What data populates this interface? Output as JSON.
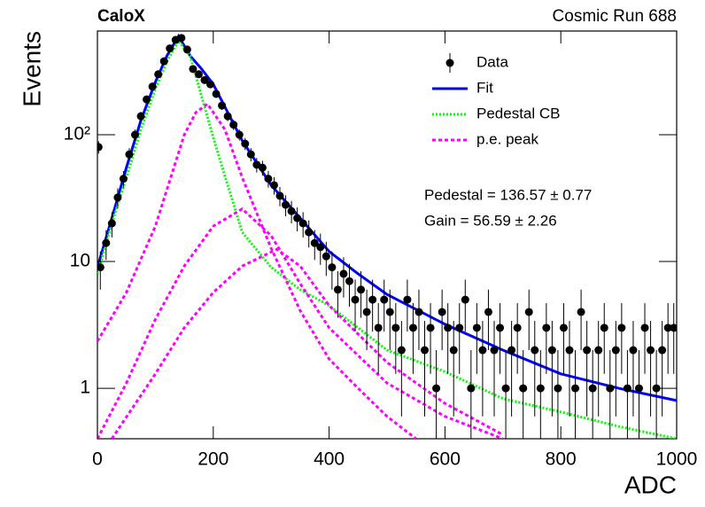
{
  "chart_data": {
    "type": "scatter",
    "title": "CaloX",
    "subtitle": "Cosmic Run 688",
    "x_label": "ADC",
    "y_label": "Events",
    "log_y": true,
    "xlim": [
      0,
      1000
    ],
    "xticks": [
      0,
      200,
      400,
      600,
      800,
      1000
    ],
    "ylim": [
      0.4,
      658
    ],
    "yticks": [
      1,
      10,
      {
        "value": 100,
        "label": "10²"
      }
    ],
    "annotations": [
      "Pedestal = 136.57 ± 0.77",
      "Gain = 56.59 ± 2.26"
    ],
    "legend": "upper right",
    "data": {
      "name": "Data",
      "color": "#000000",
      "x": [
        2,
        5,
        15,
        25,
        35,
        45,
        55,
        65,
        75,
        85,
        95,
        105,
        115,
        125,
        135,
        145,
        155,
        165,
        175,
        185,
        195,
        205,
        215,
        225,
        235,
        245,
        255,
        265,
        275,
        285,
        295,
        305,
        315,
        325,
        335,
        345,
        355,
        365,
        375,
        385,
        395,
        405,
        415,
        425,
        435,
        445,
        455,
        465,
        475,
        485,
        495,
        505,
        515,
        525,
        535,
        545,
        555,
        565,
        575,
        585,
        595,
        605,
        615,
        625,
        635,
        645,
        655,
        665,
        675,
        685,
        695,
        705,
        715,
        725,
        735,
        745,
        755,
        765,
        775,
        785,
        795,
        805,
        815,
        825,
        835,
        845,
        855,
        865,
        875,
        885,
        895,
        905,
        915,
        925,
        935,
        945,
        955,
        965,
        975,
        985,
        995
      ],
      "values": [
        80,
        9,
        14,
        20,
        32,
        45,
        70,
        100,
        140,
        190,
        240,
        300,
        380,
        480,
        560,
        580,
        470,
        330,
        300,
        270,
        250,
        210,
        170,
        140,
        120,
        100,
        85,
        70,
        58,
        55,
        45,
        40,
        33,
        28,
        25,
        22,
        20,
        17,
        14,
        13,
        11,
        9,
        6,
        8,
        7,
        5,
        6,
        4,
        5,
        3,
        5,
        4,
        3,
        2,
        5,
        3,
        4,
        2,
        3,
        1,
        4,
        3,
        2,
        3,
        5,
        1,
        3,
        2,
        4,
        2,
        3,
        1,
        2,
        3,
        1,
        4,
        2,
        1,
        3,
        2,
        1,
        3,
        2,
        1,
        4,
        2,
        1,
        2,
        3,
        1,
        2,
        3,
        1,
        2,
        1,
        3,
        2,
        1,
        2,
        3,
        3
      ],
      "errors": [
        9,
        3,
        3.7,
        4.5,
        5.7,
        6.7,
        8.4,
        10,
        11.8,
        13.8,
        15.5,
        17.3,
        19.5,
        21.9,
        23.7,
        24.1,
        21.7,
        18.2,
        17.3,
        16.4,
        15.8,
        14.5,
        13,
        11.8,
        11,
        10,
        9.2,
        8.4,
        7.6,
        7.4,
        6.7,
        6.3,
        5.7,
        5.3,
        5,
        4.7,
        4.5,
        4.1,
        3.7,
        3.6,
        3.3,
        3,
        2.4,
        2.8,
        2.6,
        2.2,
        2.4,
        2,
        2.2,
        1.7,
        2.2,
        2,
        1.7,
        1.4,
        2.2,
        1.7,
        2,
        1.4,
        1.7,
        1,
        2,
        1.7,
        1.4,
        1.7,
        2.2,
        1,
        1.7,
        1.4,
        2,
        1.4,
        1.7,
        1,
        1.4,
        1.7,
        1,
        2,
        1.4,
        1,
        1.7,
        1.4,
        1,
        1.7,
        1.4,
        1,
        2,
        1.4,
        1,
        1.4,
        1.7,
        1,
        1.4,
        1.7,
        1,
        1.4,
        1,
        1.7,
        1.4,
        1,
        1.4,
        1.7,
        1.7
      ]
    },
    "series": [
      {
        "name": "Fit",
        "color": "#0000ff",
        "style": "solid",
        "x": [
          0,
          25,
          50,
          75,
          100,
          120,
          140,
          160,
          180,
          200,
          225,
          250,
          300,
          350,
          400,
          450,
          500,
          600,
          700,
          800,
          900,
          1000
        ],
        "values": [
          9,
          22,
          55,
          130,
          260,
          420,
          600,
          420,
          330,
          250,
          150,
          90,
          40,
          22,
          12,
          8,
          5.5,
          3.2,
          2,
          1.3,
          1,
          0.8
        ]
      },
      {
        "name": "Pedestal CB",
        "color": "#00ff00",
        "style": "dotted",
        "x": [
          0,
          25,
          50,
          75,
          100,
          120,
          140,
          160,
          180,
          200,
          225,
          250,
          300,
          350,
          400,
          500,
          600,
          700,
          800,
          900,
          1000
        ],
        "values": [
          8,
          20,
          46,
          110,
          230,
          380,
          550,
          420,
          200,
          95,
          40,
          17,
          9,
          6,
          4.5,
          2,
          1.35,
          0.83,
          0.65,
          0.5,
          0.4
        ]
      },
      {
        "name": "p.e. peak",
        "color": "#ff00ff",
        "style": "dashed",
        "curves": [
          {
            "x": [
              0,
              50,
              100,
              150,
              170,
              190,
              220,
              250,
              300,
              350,
              400,
              450,
              500,
              550
            ],
            "values": [
              2.35,
              5.7,
              19,
              100,
              150,
              175,
              110,
              46,
              12.7,
              4.1,
              1.7,
              1,
              0.6,
              0.4
            ]
          },
          {
            "x": [
              0,
              50,
              100,
              150,
              200,
              250,
              300,
              350,
              400,
              500,
              600,
              700
            ],
            "values": [
              0.4,
              1.1,
              3.5,
              9.2,
              19,
              26,
              16,
              6.7,
              3,
              1.1,
              0.6,
              0.4
            ]
          },
          {
            "x": [
              25,
              100,
              150,
              200,
              250,
              310,
              350,
              400,
              500,
              600,
              700
            ],
            "values": [
              0.4,
              1.3,
              3,
              5.7,
              9.2,
              12.5,
              9.2,
              4.5,
              1.6,
              0.76,
              0.43
            ]
          }
        ]
      }
    ]
  }
}
